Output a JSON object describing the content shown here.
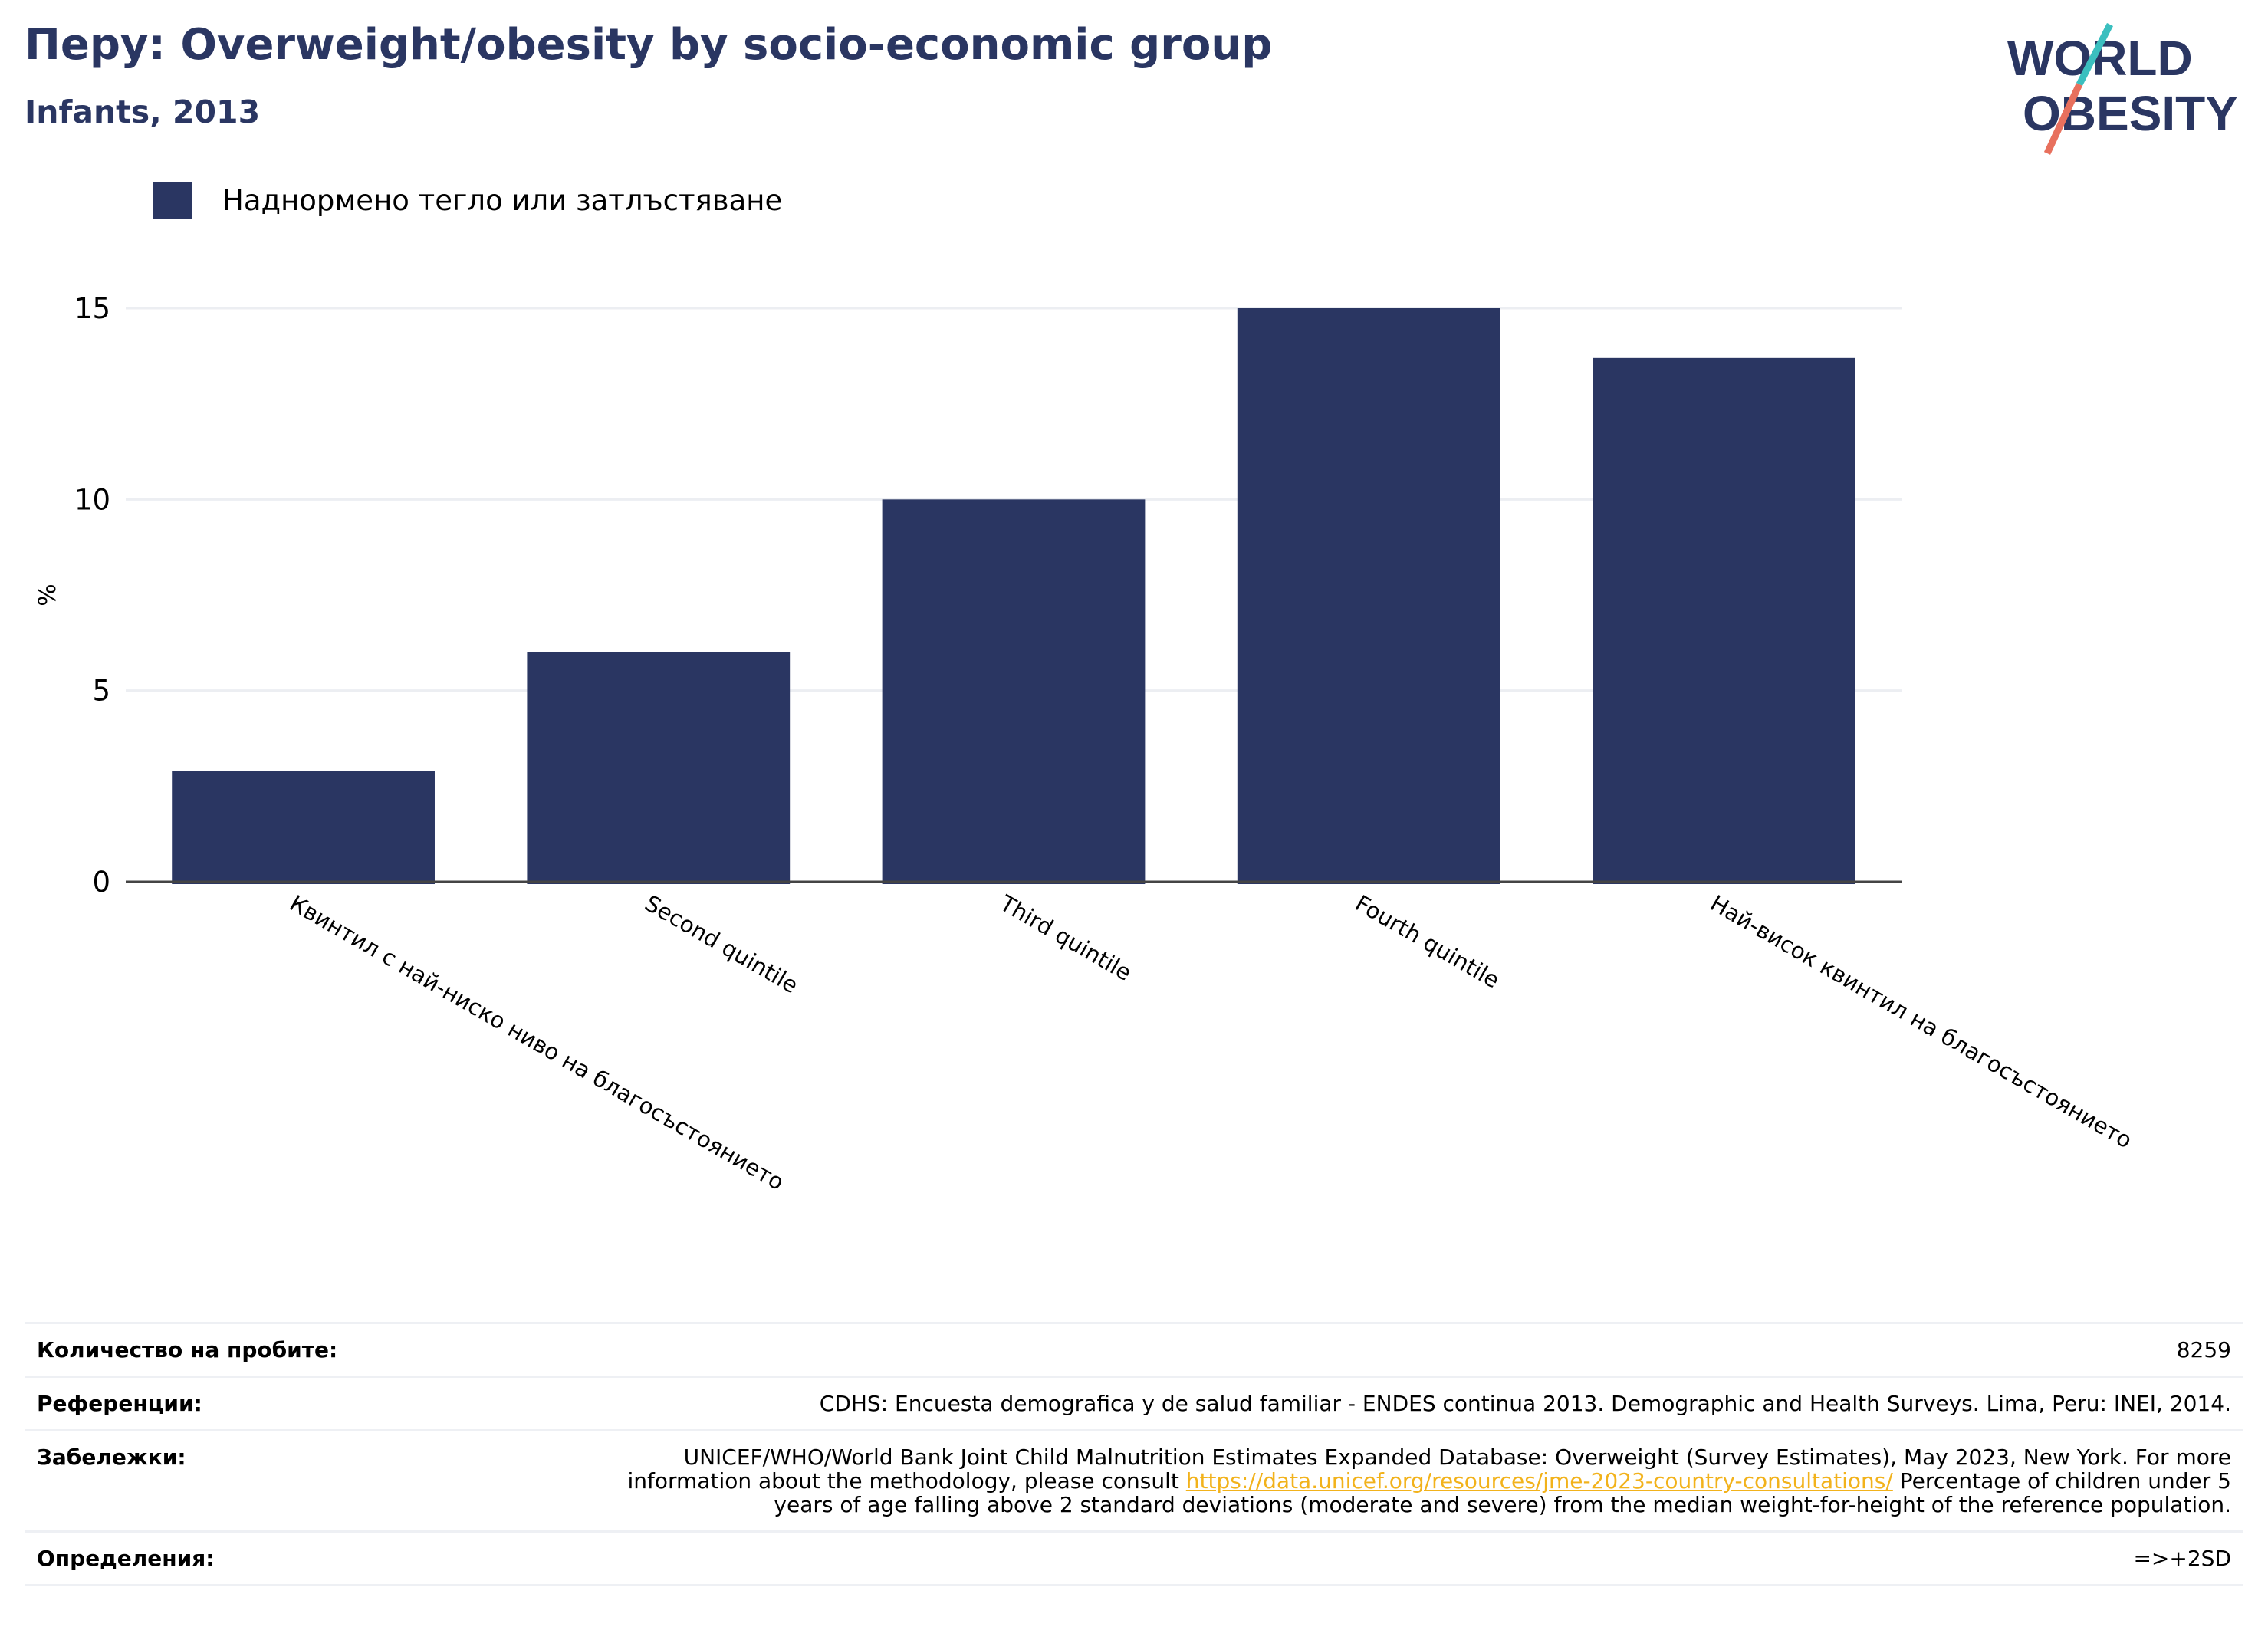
{
  "header": {
    "title": "Перу: Overweight/obesity by socio-economic group",
    "subtitle": "Infants, 2013"
  },
  "logo": {
    "line1": "WORLD",
    "line2": "OBESITY",
    "text_color": "#2a3662",
    "accent_teal": "#3bbfbf",
    "accent_coral": "#e8705d"
  },
  "legend": {
    "items": [
      {
        "label": "Наднормено тегло или затлъстяване",
        "color": "#2a3662"
      }
    ]
  },
  "chart_data": {
    "type": "bar",
    "categories": [
      "Квинтил с най-ниско ниво на благосъстоянието",
      "Second quintile",
      "Third quintile",
      "Fourth quintile",
      "Най-висок квинтил на благосъстоянието"
    ],
    "series": [
      {
        "name": "Наднормено тегло или затлъстяване",
        "values": [
          2.9,
          6.0,
          10.0,
          15.0,
          13.7
        ],
        "color": "#2a3662"
      }
    ],
    "title": "Перу: Overweight/obesity by socio-economic group",
    "subtitle": "Infants, 2013",
    "xlabel": "",
    "ylabel": "%",
    "ylim": [
      0,
      15
    ],
    "yticks": [
      0,
      5,
      10,
      15
    ],
    "grid": true,
    "legend_position": "top-left"
  },
  "footer": {
    "rows": [
      {
        "label": "Количество на пробите:",
        "value": "8259"
      },
      {
        "label": "Референции:",
        "value": "CDHS: Encuesta demografica y de salud familiar - ENDES continua 2013. Demographic and Health Surveys. Lima, Peru: INEI, 2014."
      },
      {
        "label": "Забележки:",
        "value_before": "UNICEF/WHO/World Bank Joint Child Malnutrition Estimates Expanded Database: Overweight (Survey Estimates), May 2023, New York. For more information about the methodology, please consult ",
        "link": "https://data.unicef.org/resources/jme-2023-country-consultations/",
        "value_after": " Percentage of children under 5 years of age falling above 2 standard deviations (moderate and severe) from the median weight-for-height of the reference population."
      },
      {
        "label": "Определения:",
        "value": "=>+2SD"
      }
    ],
    "link_color": "#f2b21b"
  }
}
